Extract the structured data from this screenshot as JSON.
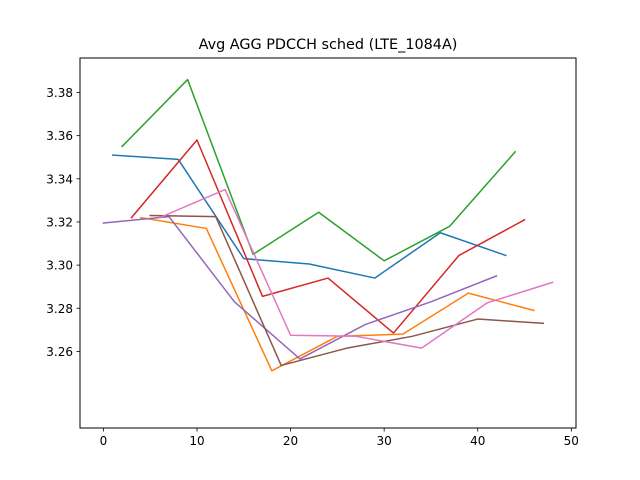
{
  "chart_data": {
    "type": "line",
    "title": "Avg AGG PDCCH sched (LTE_1084A)",
    "xlabel": "",
    "ylabel": "",
    "xlim": [
      -2.5,
      50.5
    ],
    "ylim": [
      3.2245,
      3.396
    ],
    "xticks": [
      0,
      10,
      20,
      30,
      40,
      50
    ],
    "yticks": [
      3.26,
      3.28,
      3.3,
      3.32,
      3.34,
      3.36,
      3.38
    ],
    "ytick_labels": [
      "3.26",
      "3.28",
      "3.30",
      "3.32",
      "3.34",
      "3.36",
      "3.38"
    ],
    "grid": false,
    "legend": "none",
    "series": [
      {
        "color": "#1f77b4",
        "x": [
          1,
          8,
          15,
          22,
          29,
          36,
          43
        ],
        "y": [
          3.351,
          3.349,
          3.303,
          3.3005,
          3.294,
          3.315,
          3.3045
        ]
      },
      {
        "color": "#ff7f0e",
        "x": [
          4,
          11,
          18,
          25,
          32,
          39,
          46
        ],
        "y": [
          3.322,
          3.317,
          3.251,
          3.267,
          3.268,
          3.287,
          3.279
        ]
      },
      {
        "color": "#2ca02c",
        "x": [
          2,
          9,
          16,
          23,
          30,
          37,
          44
        ],
        "y": [
          3.355,
          3.386,
          3.305,
          3.3245,
          3.302,
          3.318,
          3.3525
        ]
      },
      {
        "color": "#d62728",
        "x": [
          3,
          10,
          17,
          24,
          31,
          38,
          45
        ],
        "y": [
          3.322,
          3.358,
          3.2855,
          3.294,
          3.2685,
          3.3045,
          3.321
        ]
      },
      {
        "color": "#9467bd",
        "x": [
          0,
          7,
          14,
          21,
          28,
          35,
          42
        ],
        "y": [
          3.3195,
          3.3225,
          3.283,
          3.2565,
          3.2725,
          3.283,
          3.295
        ]
      },
      {
        "color": "#8c564b",
        "x": [
          5,
          12,
          19,
          26,
          33,
          40,
          47
        ],
        "y": [
          3.323,
          3.3225,
          3.2535,
          3.2615,
          3.267,
          3.275,
          3.273
        ]
      },
      {
        "color": "#e377c2",
        "x": [
          6,
          13,
          20,
          27,
          34,
          41,
          48
        ],
        "y": [
          3.322,
          3.335,
          3.2675,
          3.267,
          3.2615,
          3.2825,
          3.292
        ]
      }
    ]
  }
}
